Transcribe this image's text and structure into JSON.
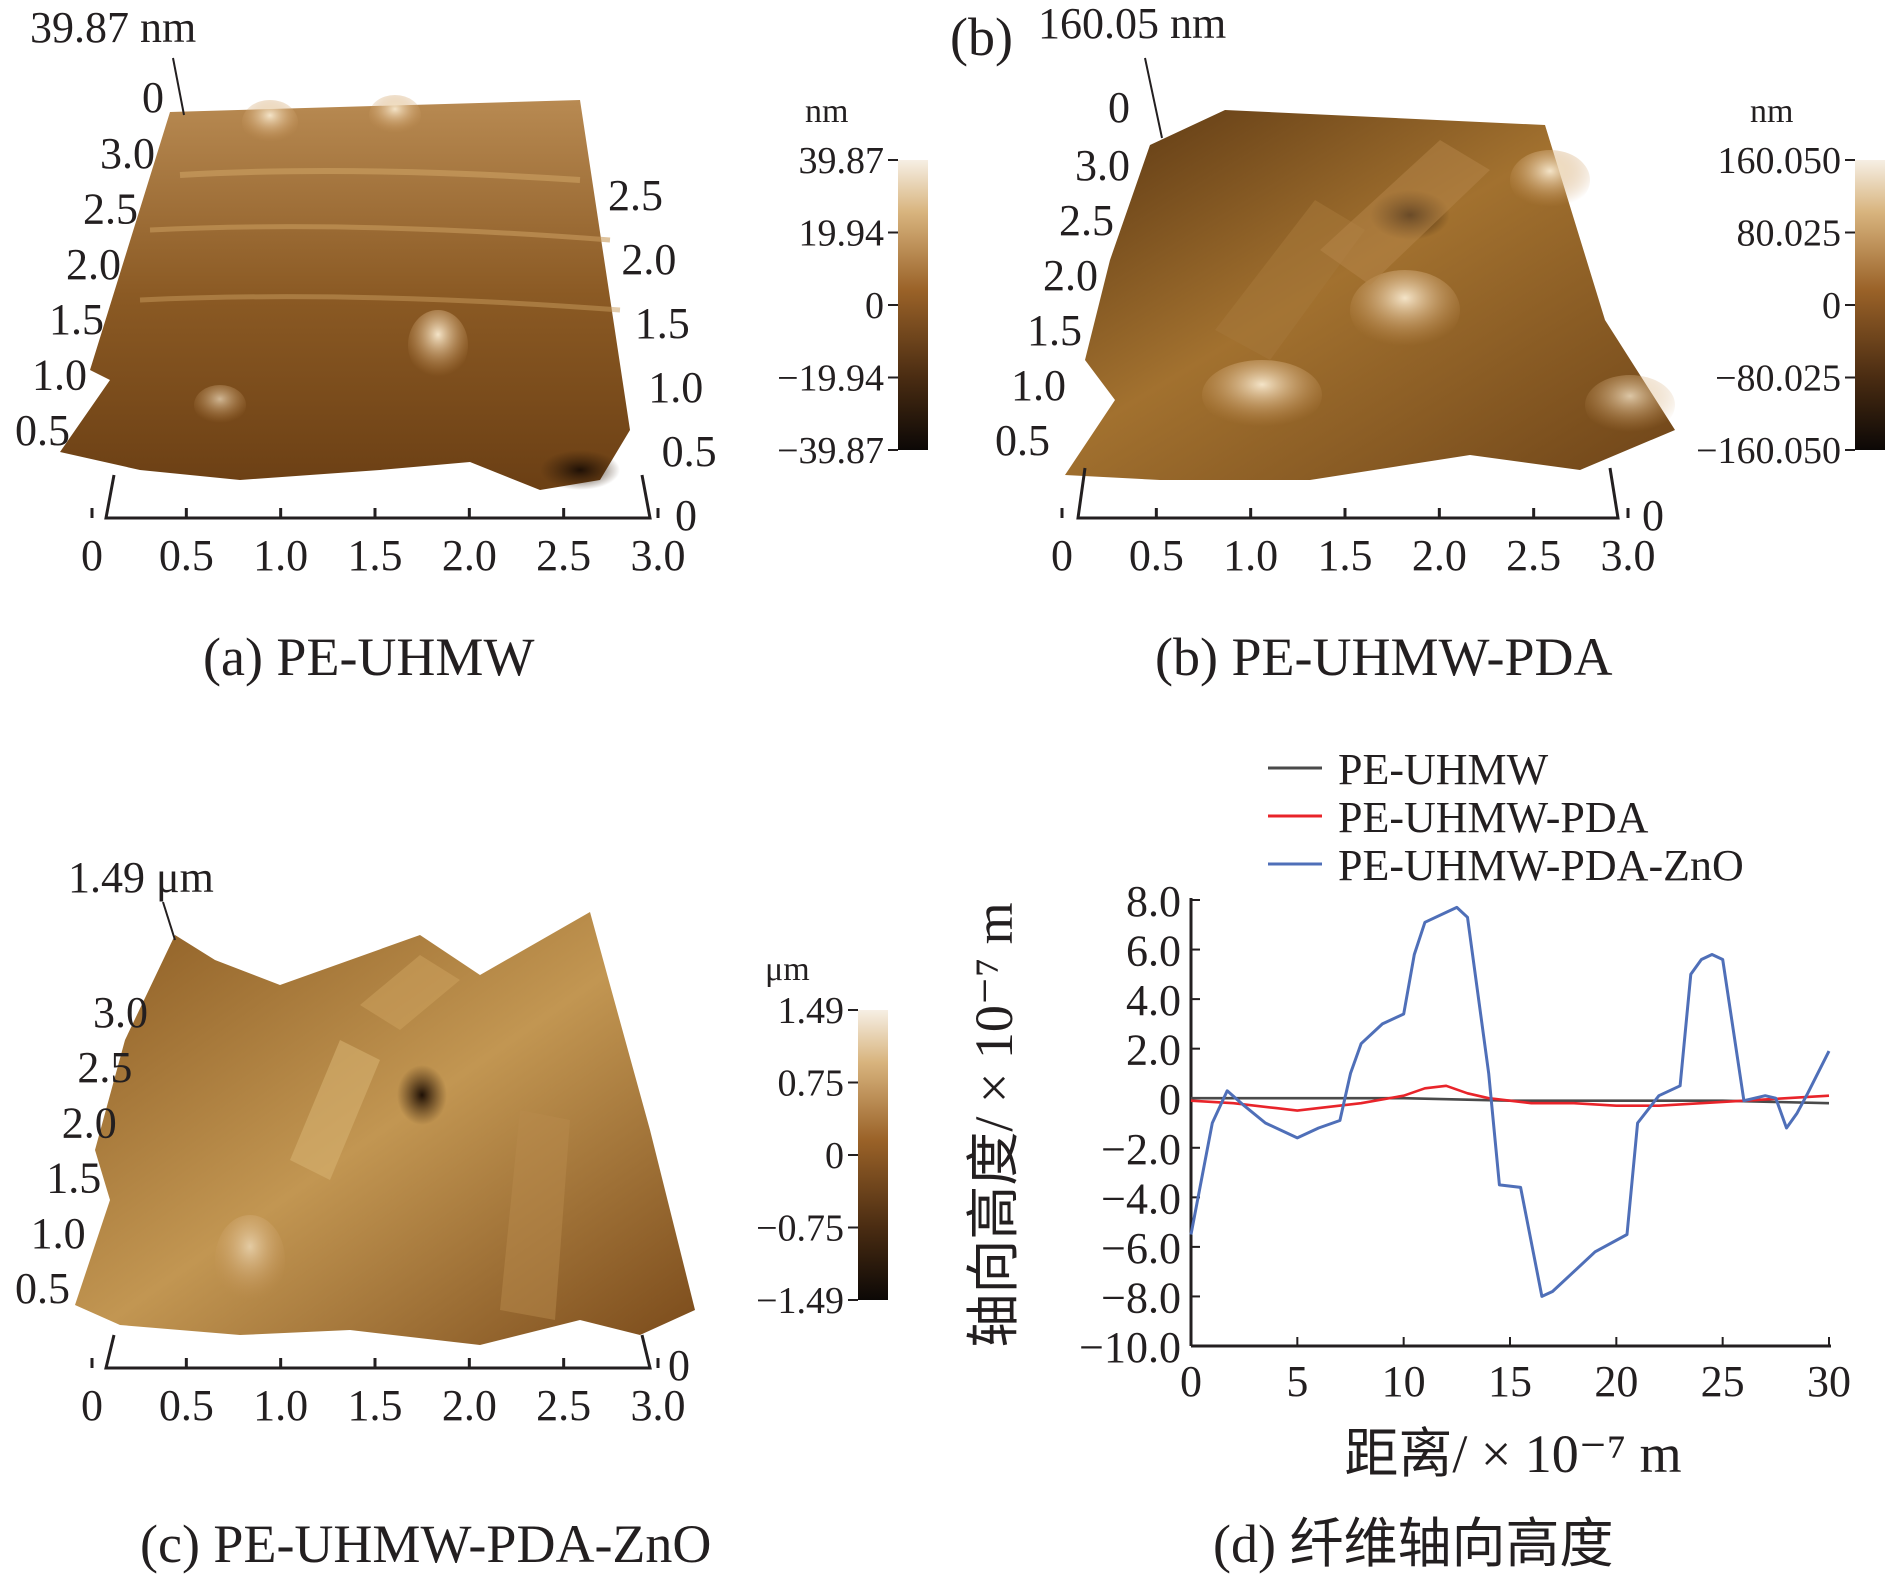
{
  "chart_data": [
    {
      "type": "heatmap",
      "panel": "a",
      "caption": "(a) PE-UHMW",
      "peak_label": "39.87 nm",
      "z_origin_label": "0",
      "x_ticks": [
        "0",
        "0.5",
        "1.0",
        "1.5",
        "2.0",
        "2.5",
        "3.0"
      ],
      "left_y_ticks": [
        "0.5",
        "1.0",
        "1.5",
        "2.0",
        "2.5",
        "3.0"
      ],
      "right_y_ticks": [
        "0",
        "0.5",
        "1.0",
        "1.5",
        "2.0",
        "2.5"
      ],
      "colorbar": {
        "unit": "nm",
        "ticks": [
          "39.87",
          "19.94",
          "0",
          "−19.94",
          "−39.87"
        ],
        "range": [
          -39.87,
          39.87
        ]
      }
    },
    {
      "type": "heatmap",
      "panel": "b",
      "caption": "(b) PE-UHMW-PDA",
      "panel_tag": "(b)",
      "peak_label": "160.05 nm",
      "z_origin_label": "0",
      "x_ticks": [
        "0",
        "0.5",
        "1.0",
        "1.5",
        "2.0",
        "2.5",
        "3.0"
      ],
      "left_y_ticks": [
        "0.5",
        "1.0",
        "1.5",
        "2.0",
        "2.5",
        "3.0"
      ],
      "right_y_ticks": [
        "0"
      ],
      "colorbar": {
        "unit": "nm",
        "ticks": [
          "160.050",
          "80.025",
          "0",
          "−80.025",
          "−160.050"
        ],
        "range": [
          -160.05,
          160.05
        ]
      }
    },
    {
      "type": "heatmap",
      "panel": "c",
      "caption": "(c) PE-UHMW-PDA-ZnO",
      "peak_label": "1.49 μm",
      "x_ticks": [
        "0",
        "0.5",
        "1.0",
        "1.5",
        "2.0",
        "2.5",
        "3.0"
      ],
      "left_y_ticks": [
        "0.5",
        "1.0",
        "1.5",
        "2.0",
        "2.5",
        "3.0"
      ],
      "right_y_ticks": [
        "0"
      ],
      "colorbar": {
        "unit": "μm",
        "ticks": [
          "1.49",
          "0.75",
          "0",
          "−0.75",
          "−1.49"
        ],
        "range": [
          -1.49,
          1.49
        ]
      }
    },
    {
      "type": "line",
      "panel": "d",
      "caption": "(d) 纤维轴向高度",
      "xlabel": "距离/ × 10⁻⁷ m",
      "ylabel": "轴向高度/ × 10⁻⁷ m",
      "xlim": [
        0,
        30
      ],
      "ylim": [
        -10.0,
        8.0
      ],
      "x_ticks": [
        "0",
        "5",
        "10",
        "15",
        "20",
        "25",
        "30"
      ],
      "y_ticks": [
        "8.0",
        "6.0",
        "4.0",
        "2.0",
        "0",
        "−2.0",
        "−4.0",
        "−6.0",
        "−8.0",
        "−10.0"
      ],
      "legend_position": "top",
      "series": [
        {
          "name": "PE-UHMW",
          "color": "#4a4a4a",
          "x": [
            0,
            5,
            10,
            15,
            20,
            25,
            30
          ],
          "y": [
            0.0,
            0.0,
            0.0,
            -0.1,
            -0.1,
            -0.1,
            -0.2
          ]
        },
        {
          "name": "PE-UHMW-PDA",
          "color": "#e8242a",
          "x": [
            0,
            2,
            4,
            5,
            6,
            8,
            10,
            11,
            12,
            13,
            14,
            15,
            16,
            18,
            20,
            22,
            24,
            26,
            28,
            30
          ],
          "y": [
            -0.1,
            -0.2,
            -0.4,
            -0.5,
            -0.4,
            -0.2,
            0.1,
            0.4,
            0.5,
            0.2,
            0.0,
            -0.1,
            -0.2,
            -0.2,
            -0.3,
            -0.3,
            -0.2,
            -0.1,
            0.0,
            0.1
          ]
        },
        {
          "name": "PE-UHMW-PDA-ZnO",
          "color": "#4f6fb8",
          "x": [
            0,
            1,
            1.7,
            2.5,
            3.5,
            5,
            6,
            7,
            7.5,
            8,
            9,
            10,
            10.5,
            11,
            12.5,
            13,
            14,
            14.5,
            15.5,
            16.5,
            17,
            18,
            19,
            20.5,
            21,
            22,
            23,
            23.5,
            24,
            24.5,
            25,
            26,
            27,
            27.5,
            28,
            28.5,
            29,
            30
          ],
          "y": [
            -5.5,
            -1.0,
            0.3,
            -0.3,
            -1.0,
            -1.6,
            -1.2,
            -0.9,
            1.0,
            2.2,
            3.0,
            3.4,
            5.8,
            7.1,
            7.7,
            7.3,
            1.0,
            -3.5,
            -3.6,
            -8.0,
            -7.8,
            -7.0,
            -6.2,
            -5.5,
            -1.0,
            0.1,
            0.5,
            5.0,
            5.6,
            5.8,
            5.6,
            -0.1,
            0.1,
            0.0,
            -1.2,
            -0.6,
            0.2,
            1.9
          ]
        }
      ]
    }
  ]
}
